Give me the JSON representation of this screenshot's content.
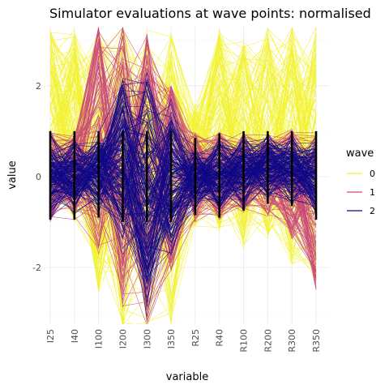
{
  "chart_data": {
    "type": "line",
    "title": "Simulator evaluations at wave points: normalised",
    "xlabel": "variable",
    "ylabel": "value",
    "categories": [
      "I25",
      "I40",
      "I100",
      "I200",
      "I300",
      "I350",
      "R25",
      "R40",
      "R100",
      "R200",
      "R300",
      "R350"
    ],
    "ylim": [
      -3.25,
      3.3
    ],
    "yticks": [
      -2,
      0,
      2
    ],
    "grid": true,
    "legend": {
      "title": "wave",
      "position": "right",
      "entries": [
        "0",
        "1",
        "2"
      ]
    },
    "series": [
      {
        "name": "0",
        "color": "#f2f22e",
        "line_count": 150,
        "range_low": [
          -1.05,
          -1.0,
          -2.6,
          -3.3,
          -3.3,
          -3.3,
          -1.1,
          -1.2,
          -1.6,
          -1.4,
          -2.0,
          -2.3
        ],
        "range_high": [
          3.3,
          3.3,
          3.3,
          3.3,
          3.3,
          3.3,
          1.6,
          3.3,
          3.0,
          3.3,
          3.3,
          3.3
        ]
      },
      {
        "name": "1",
        "color": "#c9467a",
        "line_count": 130,
        "range_low": [
          -1.0,
          -0.95,
          -1.7,
          -2.9,
          -3.3,
          -2.1,
          -1.0,
          -0.95,
          -0.8,
          -0.9,
          -1.4,
          -2.5
        ],
        "range_high": [
          1.05,
          1.0,
          3.3,
          3.3,
          3.3,
          2.0,
          1.0,
          1.0,
          1.0,
          1.0,
          1.05,
          1.0
        ]
      },
      {
        "name": "2",
        "color": "#0d0887",
        "line_count": 160,
        "range_low": [
          -0.95,
          -0.95,
          -0.9,
          -1.8,
          -3.3,
          -2.0,
          -0.85,
          -0.9,
          -0.75,
          -0.6,
          -0.65,
          -0.95
        ],
        "range_high": [
          1.0,
          1.0,
          1.0,
          2.6,
          2.7,
          2.0,
          0.85,
          0.95,
          1.0,
          1.0,
          1.0,
          1.0
        ]
      }
    ],
    "emphasis_segments": {
      "color": "#000000",
      "range": [
        -1.0,
        1.0
      ]
    }
  }
}
